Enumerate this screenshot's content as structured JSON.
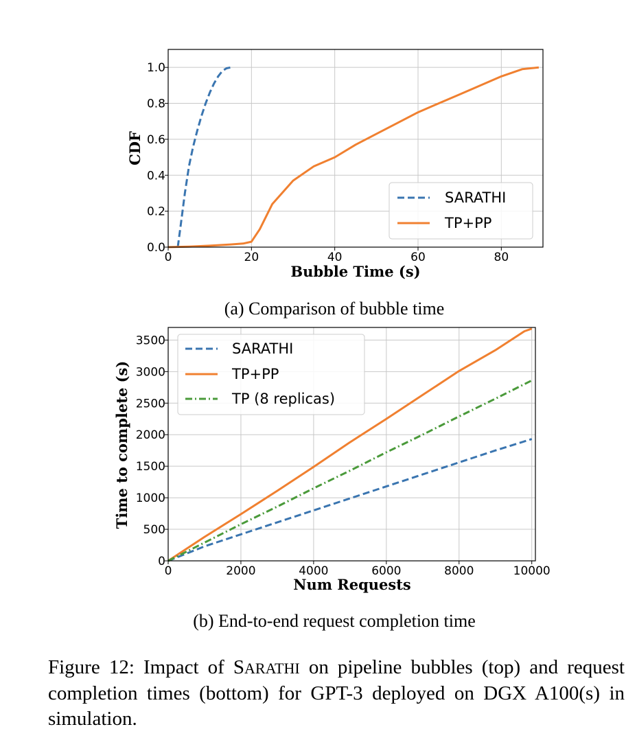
{
  "chart_data": [
    {
      "type": "line",
      "xlabel": "Bubble Time (s)",
      "ylabel": "CDF",
      "xlim": [
        0,
        90
      ],
      "ylim": [
        0,
        1.1
      ],
      "xticks": [
        0,
        20,
        40,
        60,
        80
      ],
      "yticks": [
        0.0,
        0.2,
        0.4,
        0.6,
        0.8,
        1.0
      ],
      "xtick_labels": [
        "0",
        "20",
        "40",
        "60",
        "80"
      ],
      "ytick_labels": [
        "0.0",
        "0.2",
        "0.4",
        "0.6",
        "0.8",
        "1.0"
      ],
      "grid": true,
      "legend_position": "bottom-right",
      "series": [
        {
          "name": "SARATHI",
          "color": "#3a75b0",
          "style": "dashed",
          "x": [
            2.3,
            3,
            4,
            5,
            6,
            7,
            8,
            9,
            10,
            11,
            12,
            13,
            14,
            15
          ],
          "y": [
            0,
            0.12,
            0.3,
            0.45,
            0.56,
            0.65,
            0.73,
            0.8,
            0.86,
            0.91,
            0.95,
            0.98,
            0.995,
            1.0
          ]
        },
        {
          "name": "TP+PP",
          "color": "#f08030",
          "style": "solid",
          "x": [
            0,
            5,
            10,
            15,
            18,
            20,
            22,
            25,
            30,
            35,
            40,
            45,
            50,
            55,
            60,
            65,
            70,
            75,
            80,
            85,
            89
          ],
          "y": [
            0,
            0.003,
            0.008,
            0.015,
            0.02,
            0.03,
            0.1,
            0.24,
            0.37,
            0.45,
            0.5,
            0.57,
            0.63,
            0.69,
            0.75,
            0.8,
            0.85,
            0.9,
            0.95,
            0.99,
            1.0
          ]
        }
      ]
    },
    {
      "type": "line",
      "xlabel": "Num Requests",
      "ylabel": "Time to complete (s)",
      "xlim": [
        0,
        10100
      ],
      "ylim": [
        0,
        3700
      ],
      "xticks": [
        0,
        2000,
        4000,
        6000,
        8000,
        10000
      ],
      "yticks": [
        0,
        500,
        1000,
        1500,
        2000,
        2500,
        3000,
        3500
      ],
      "xtick_labels": [
        "0",
        "2000",
        "4000",
        "6000",
        "8000",
        "10000"
      ],
      "ytick_labels": [
        "0",
        "500",
        "1000",
        "1500",
        "2000",
        "2500",
        "3000",
        "3500"
      ],
      "grid": true,
      "legend_position": "top-left",
      "series": [
        {
          "name": "SARATHI",
          "color": "#3a75b0",
          "style": "dashed",
          "x": [
            0,
            1000,
            2000,
            3000,
            4000,
            5000,
            6000,
            7000,
            8000,
            9000,
            10000
          ],
          "y": [
            0,
            230,
            420,
            610,
            800,
            990,
            1180,
            1370,
            1560,
            1750,
            1930
          ]
        },
        {
          "name": "TP+PP",
          "color": "#f08030",
          "style": "solid",
          "x": [
            0,
            1000,
            2000,
            3000,
            4000,
            5000,
            6000,
            7000,
            8000,
            9000,
            9800,
            10000
          ],
          "y": [
            0,
            380,
            740,
            1110,
            1490,
            1880,
            2250,
            2630,
            3010,
            3340,
            3640,
            3680
          ]
        },
        {
          "name": "TP (8 replicas)",
          "color": "#4a9a3a",
          "style": "dashdot",
          "x": [
            0,
            1000,
            2000,
            3000,
            4000,
            5000,
            6000,
            7000,
            8000,
            9000,
            10000
          ],
          "y": [
            0,
            290,
            580,
            860,
            1150,
            1430,
            1720,
            2000,
            2290,
            2570,
            2860
          ]
        }
      ]
    }
  ],
  "captions": {
    "sub_a": "(a) Comparison of bubble time",
    "sub_b": "(b) End-to-end request completion time",
    "figure_prefix": "Figure 12: Impact of ",
    "figure_name_initial": "S",
    "figure_name_rest": "ARATHI",
    "figure_suffix": " on pipeline bubbles (top) and request completion times (bottom) for GPT-3 deployed on DGX A100(s) in simulation."
  }
}
